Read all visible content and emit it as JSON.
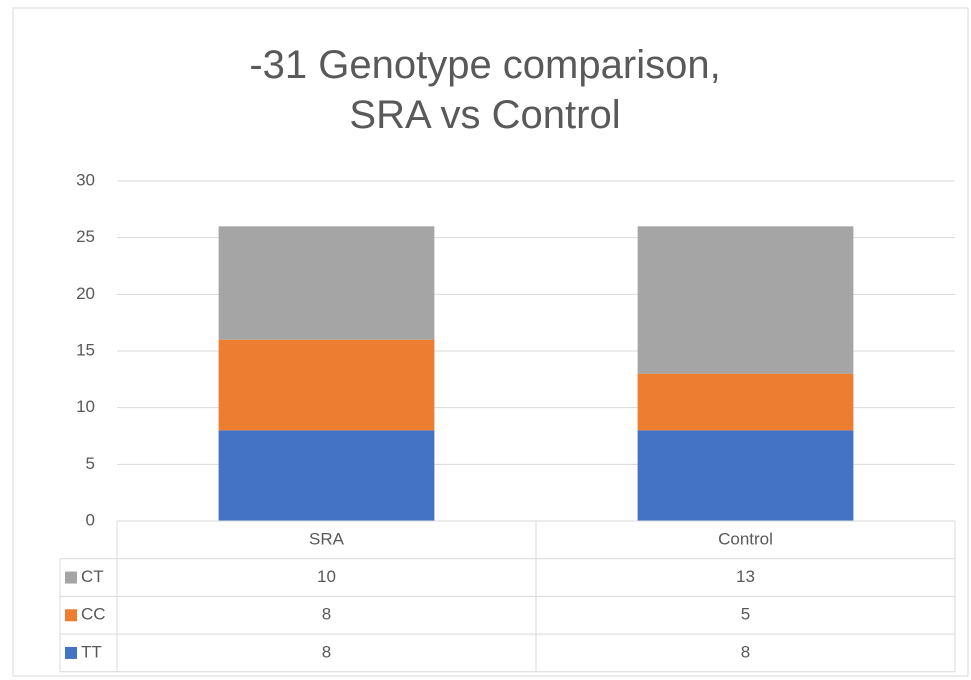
{
  "chart_data": {
    "type": "bar",
    "stacked": true,
    "title": "-31 Genotype comparison, SRA vs Control",
    "categories": [
      "SRA",
      "Control"
    ],
    "series": [
      {
        "name": "TT",
        "color": "#4472c4",
        "values": [
          8,
          8
        ]
      },
      {
        "name": "CC",
        "color": "#ed7d31",
        "values": [
          8,
          5
        ]
      },
      {
        "name": "CT",
        "color": "#a5a5a5",
        "values": [
          10,
          13
        ]
      }
    ],
    "ylim": [
      0,
      30
    ],
    "yticks": [
      0,
      5,
      10,
      15,
      20,
      25,
      30
    ],
    "grid": true,
    "data_table": true
  }
}
